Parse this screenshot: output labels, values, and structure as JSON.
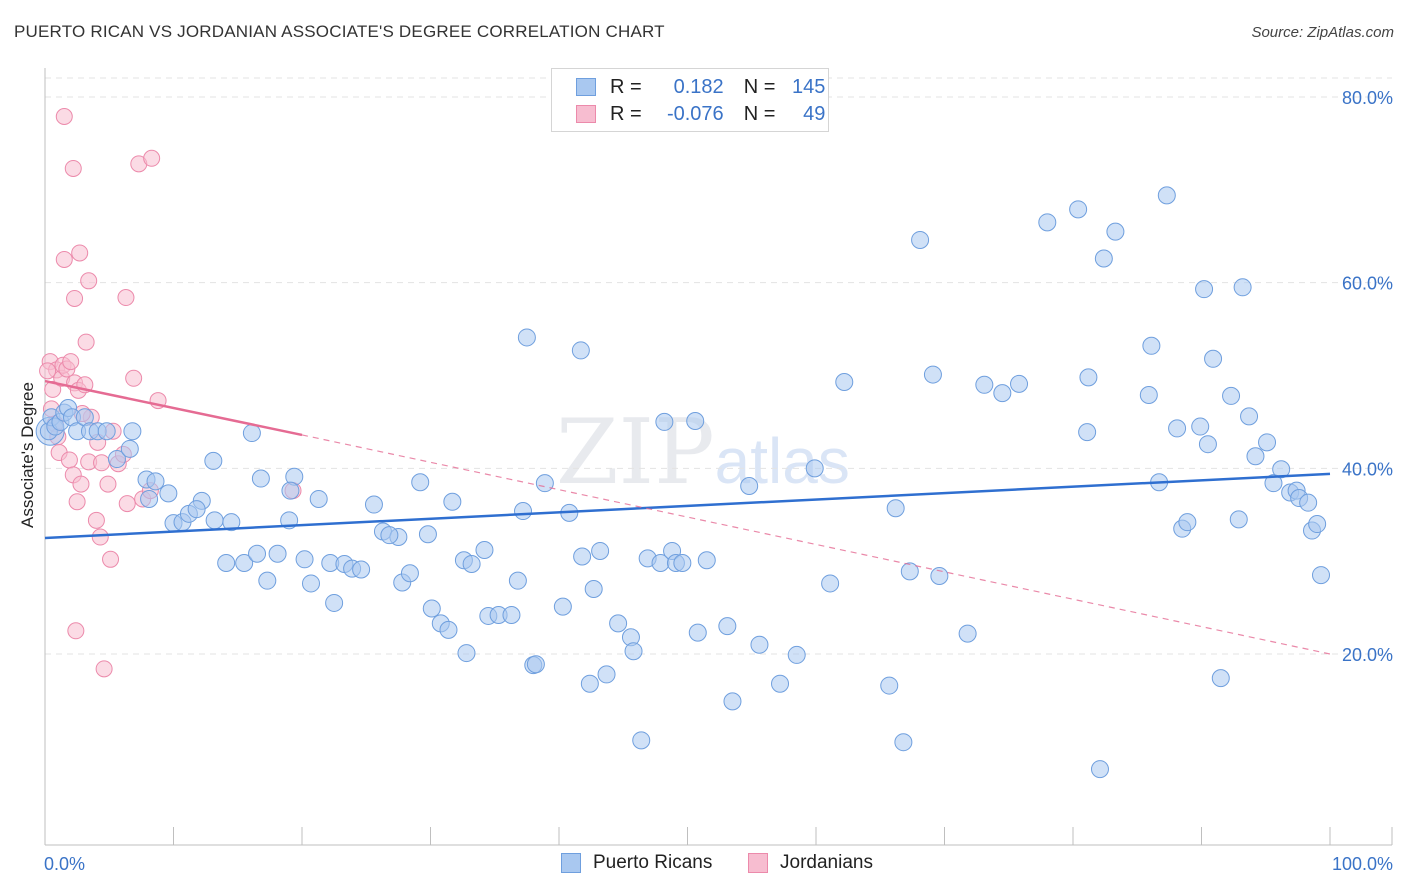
{
  "header": {
    "title": "PUERTO RICAN VS JORDANIAN ASSOCIATE'S DEGREE CORRELATION CHART",
    "source": "Source: ZipAtlas.com"
  },
  "watermark": {
    "zip": "ZIP",
    "atlas": "atlas"
  },
  "legend": {
    "rows": [
      {
        "r_label": "R =",
        "r_value": "0.182",
        "n_label": "N =",
        "n_value": "145"
      },
      {
        "r_label": "R =",
        "r_value": "-0.076",
        "n_label": "N =",
        "n_value": "49"
      }
    ],
    "bottom": [
      "Puerto Ricans",
      "Jordanians"
    ]
  },
  "colors": {
    "blue_fill": "#a9c8f0",
    "blue_stroke": "#6f9fde",
    "blue_line": "#2f6fd0",
    "pink_fill": "#f7bdd0",
    "pink_stroke": "#ec8aab",
    "pink_line": "#e56b93",
    "grid": "#e3e3e3",
    "axis_text": "#3a73c7"
  },
  "chart_data": {
    "type": "scatter",
    "title": "PUERTO RICAN VS JORDANIAN ASSOCIATE'S DEGREE CORRELATION CHART",
    "xlabel": "",
    "ylabel": "Associate's Degree",
    "xlim": [
      0,
      100
    ],
    "ylim": [
      0,
      85
    ],
    "x_tick_labels": [
      "0.0%",
      "100.0%"
    ],
    "y_ticks": [
      20,
      40,
      60,
      80
    ],
    "y_tick_labels": [
      "20.0%",
      "40.0%",
      "60.0%",
      "80.0%"
    ],
    "grid": true,
    "series": [
      {
        "name": "Puerto Ricans",
        "r": 0.182,
        "n": 145,
        "trend": {
          "x": [
            0,
            100
          ],
          "y": [
            32.5,
            39.4
          ]
        },
        "points": [
          [
            0.3,
            44
          ],
          [
            0.5,
            45.5
          ],
          [
            0.8,
            44.5
          ],
          [
            1.2,
            45
          ],
          [
            1.5,
            46
          ],
          [
            1.8,
            46.5
          ],
          [
            2.1,
            45.5
          ],
          [
            2.5,
            44
          ],
          [
            3.1,
            45.5
          ],
          [
            3.5,
            44
          ],
          [
            4.1,
            44
          ],
          [
            4.8,
            44
          ],
          [
            5.6,
            41
          ],
          [
            6.8,
            44
          ],
          [
            6.6,
            42.1
          ],
          [
            7.9,
            38.8
          ],
          [
            8.1,
            36.7
          ],
          [
            8.6,
            38.6
          ],
          [
            9.6,
            37.3
          ],
          [
            10,
            34.1
          ],
          [
            10.7,
            34.2
          ],
          [
            11.2,
            35.1
          ],
          [
            12.2,
            36.5
          ],
          [
            11.8,
            35.6
          ],
          [
            13.1,
            40.8
          ],
          [
            13.2,
            34.4
          ],
          [
            14.5,
            34.2
          ],
          [
            14.1,
            29.8
          ],
          [
            15.5,
            29.8
          ],
          [
            16.1,
            43.8
          ],
          [
            16.5,
            30.8
          ],
          [
            16.8,
            38.9
          ],
          [
            17.3,
            27.9
          ],
          [
            18.1,
            30.8
          ],
          [
            19,
            34.4
          ],
          [
            19.4,
            39.1
          ],
          [
            19.1,
            37.6
          ],
          [
            20.2,
            30.2
          ],
          [
            20.7,
            27.6
          ],
          [
            21.3,
            36.7
          ],
          [
            22.2,
            29.8
          ],
          [
            23.3,
            29.7
          ],
          [
            23.9,
            29.2
          ],
          [
            22.5,
            25.5
          ],
          [
            24.6,
            29.1
          ],
          [
            25.6,
            36.1
          ],
          [
            26.3,
            33.2
          ],
          [
            27.5,
            32.6
          ],
          [
            26.8,
            32.8
          ],
          [
            27.8,
            27.7
          ],
          [
            28.4,
            28.7
          ],
          [
            29.8,
            32.9
          ],
          [
            29.2,
            38.5
          ],
          [
            30.1,
            24.9
          ],
          [
            30.8,
            23.3
          ],
          [
            31.4,
            22.6
          ],
          [
            31.7,
            36.4
          ],
          [
            32.6,
            30.1
          ],
          [
            32.8,
            20.1
          ],
          [
            33.2,
            29.7
          ],
          [
            34.2,
            31.2
          ],
          [
            34.5,
            24.1
          ],
          [
            35.3,
            24.2
          ],
          [
            36.3,
            24.2
          ],
          [
            36.8,
            27.9
          ],
          [
            37.2,
            35.4
          ],
          [
            38,
            18.8
          ],
          [
            38.2,
            18.9
          ],
          [
            37.5,
            54.1
          ],
          [
            38.9,
            38.4
          ],
          [
            40.3,
            25.1
          ],
          [
            40.8,
            35.2
          ],
          [
            41.7,
            52.7
          ],
          [
            41.8,
            30.5
          ],
          [
            42.4,
            16.8
          ],
          [
            42.7,
            27
          ],
          [
            43.2,
            31.1
          ],
          [
            43.7,
            17.8
          ],
          [
            44.6,
            23.3
          ],
          [
            45.6,
            21.8
          ],
          [
            45.8,
            20.3
          ],
          [
            46.4,
            10.7
          ],
          [
            46.9,
            30.3
          ],
          [
            47.9,
            29.8
          ],
          [
            48.2,
            45
          ],
          [
            48.8,
            31.1
          ],
          [
            49.1,
            29.8
          ],
          [
            49.6,
            29.8
          ],
          [
            50.6,
            45.1
          ],
          [
            50.8,
            22.3
          ],
          [
            51.5,
            30.1
          ],
          [
            53.1,
            23
          ],
          [
            53.5,
            14.9
          ],
          [
            55.6,
            21
          ],
          [
            57.2,
            16.8
          ],
          [
            58.5,
            19.9
          ],
          [
            59.9,
            40
          ],
          [
            61.1,
            27.6
          ],
          [
            62.2,
            49.3
          ],
          [
            65.7,
            16.6
          ],
          [
            66.8,
            10.5
          ],
          [
            67.3,
            28.9
          ],
          [
            68.1,
            64.6
          ],
          [
            69.1,
            50.1
          ],
          [
            69.6,
            28.4
          ],
          [
            71.8,
            22.2
          ],
          [
            73.1,
            49
          ],
          [
            74.5,
            48.1
          ],
          [
            75.8,
            49.1
          ],
          [
            78,
            66.5
          ],
          [
            80.4,
            67.9
          ],
          [
            81.1,
            43.9
          ],
          [
            82.1,
            7.6
          ],
          [
            82.4,
            62.6
          ],
          [
            83.3,
            65.5
          ],
          [
            85.9,
            47.9
          ],
          [
            86.1,
            53.2
          ],
          [
            86.7,
            38.5
          ],
          [
            87.3,
            69.4
          ],
          [
            88.1,
            44.3
          ],
          [
            88.5,
            33.5
          ],
          [
            88.9,
            34.2
          ],
          [
            89.9,
            44.5
          ],
          [
            90.2,
            59.3
          ],
          [
            90.5,
            42.6
          ],
          [
            90.9,
            51.8
          ],
          [
            91.5,
            17.4
          ],
          [
            92.3,
            47.8
          ],
          [
            92.9,
            34.5
          ],
          [
            93.2,
            59.5
          ],
          [
            93.7,
            45.6
          ],
          [
            94.2,
            41.3
          ],
          [
            95.1,
            42.8
          ],
          [
            95.6,
            38.4
          ],
          [
            96.2,
            39.9
          ],
          [
            96.9,
            37.4
          ],
          [
            97.4,
            37.6
          ],
          [
            97.6,
            36.8
          ],
          [
            98.3,
            36.3
          ],
          [
            98.6,
            33.3
          ],
          [
            99,
            34
          ],
          [
            99.3,
            28.5
          ],
          [
            81.2,
            49.8
          ],
          [
            54.8,
            38.1
          ],
          [
            66.2,
            35.7
          ]
        ]
      },
      {
        "name": "Jordanians",
        "r": -0.076,
        "n": 49,
        "trend_solid": {
          "x": [
            0,
            20
          ],
          "y": [
            49.4,
            43.6
          ]
        },
        "trend_dashed": {
          "x": [
            20,
            100
          ],
          "y": [
            43.6,
            20
          ]
        },
        "points": [
          [
            0.4,
            51.5
          ],
          [
            0.6,
            48.5
          ],
          [
            0.9,
            50.6
          ],
          [
            1.3,
            49.7
          ],
          [
            1.4,
            51.1
          ],
          [
            1.7,
            50.7
          ],
          [
            2,
            51.5
          ],
          [
            2.3,
            49.2
          ],
          [
            2.6,
            48.4
          ],
          [
            3.2,
            53.6
          ],
          [
            0.8,
            44.8
          ],
          [
            1.1,
            41.7
          ],
          [
            1.9,
            40.9
          ],
          [
            2.2,
            39.3
          ],
          [
            2.5,
            36.4
          ],
          [
            2.8,
            38.3
          ],
          [
            3.4,
            40.7
          ],
          [
            3.6,
            45.5
          ],
          [
            4.1,
            42.8
          ],
          [
            4.4,
            40.6
          ],
          [
            4.9,
            38.3
          ],
          [
            5.3,
            44
          ],
          [
            5.7,
            40.5
          ],
          [
            6.1,
            41.5
          ],
          [
            6.4,
            36.2
          ],
          [
            6.9,
            49.7
          ],
          [
            7.6,
            36.7
          ],
          [
            8.2,
            37.6
          ],
          [
            8.8,
            47.3
          ],
          [
            1.5,
            77.9
          ],
          [
            2.2,
            72.3
          ],
          [
            7.3,
            72.8
          ],
          [
            8.3,
            73.4
          ],
          [
            2.7,
            63.2
          ],
          [
            1.5,
            62.5
          ],
          [
            3.4,
            60.2
          ],
          [
            2.3,
            58.3
          ],
          [
            6.3,
            58.4
          ],
          [
            4,
            34.4
          ],
          [
            4.3,
            32.6
          ],
          [
            5.1,
            30.2
          ],
          [
            2.4,
            22.5
          ],
          [
            4.6,
            18.4
          ],
          [
            0.5,
            46.4
          ],
          [
            2.9,
            45.9
          ],
          [
            19.3,
            37.6
          ],
          [
            1,
            43.4
          ],
          [
            3.1,
            49
          ],
          [
            0.2,
            50.5
          ]
        ]
      }
    ]
  }
}
